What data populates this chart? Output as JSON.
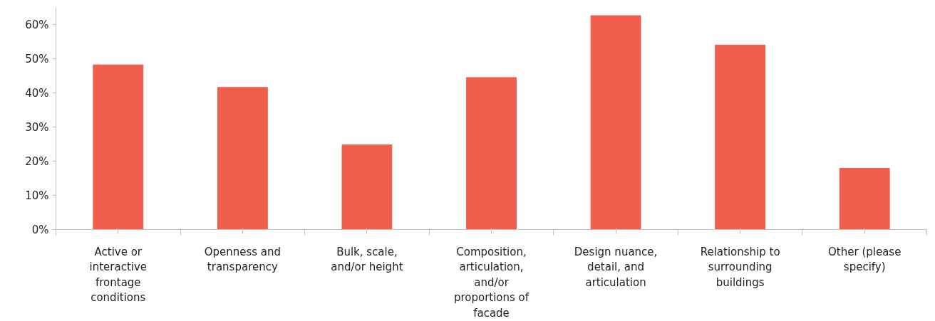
{
  "chart_data": {
    "type": "bar",
    "categories": [
      "Active or\ninteractive\nfrontage\nconditions",
      "Openness and\ntransparency",
      "Bulk, scale,\nand/or height",
      "Composition,\narticulation,\nand/or\nproportions of\nfacade",
      "Design nuance,\ndetail, and\narticulation",
      "Relationship to\nsurrounding\nbuildings",
      "Other (please\nspecify)"
    ],
    "values": [
      48.2,
      41.6,
      24.8,
      44.5,
      62.6,
      54.0,
      17.9
    ],
    "color": "#ef5d4b",
    "ylim": [
      0,
      65
    ],
    "yticks": [
      {
        "value": 0,
        "label": "0%"
      },
      {
        "value": 10,
        "label": "10%"
      },
      {
        "value": 20,
        "label": "20%"
      },
      {
        "value": 30,
        "label": "30%"
      },
      {
        "value": 40,
        "label": "40%"
      },
      {
        "value": 50,
        "label": "50%"
      },
      {
        "value": 60,
        "label": "60%"
      }
    ],
    "grid": false
  }
}
